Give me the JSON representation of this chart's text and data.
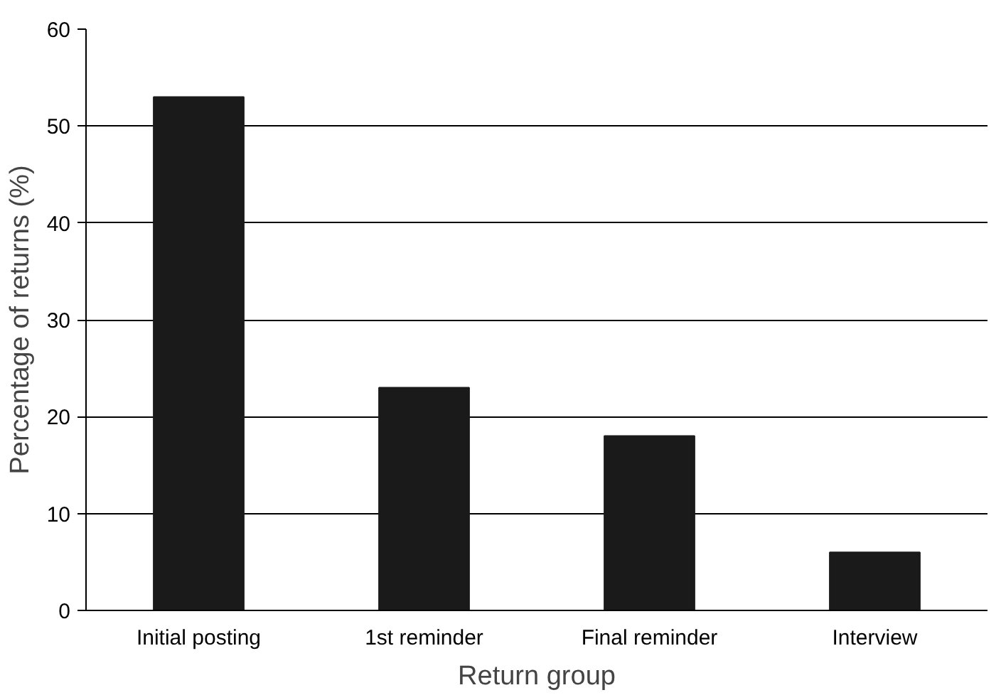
{
  "chart_data": {
    "type": "bar",
    "xlabel": "Return group",
    "ylabel": "Percentage of returns (%)",
    "categories": [
      "Initial posting",
      "1st reminder",
      "Final reminder",
      "Interview"
    ],
    "values": [
      53,
      23,
      18,
      6
    ],
    "color": "#1a1a1a",
    "ylim": [
      0,
      60
    ],
    "yticks": [
      0,
      10,
      20,
      30,
      40,
      50,
      60
    ],
    "grid": "y"
  }
}
